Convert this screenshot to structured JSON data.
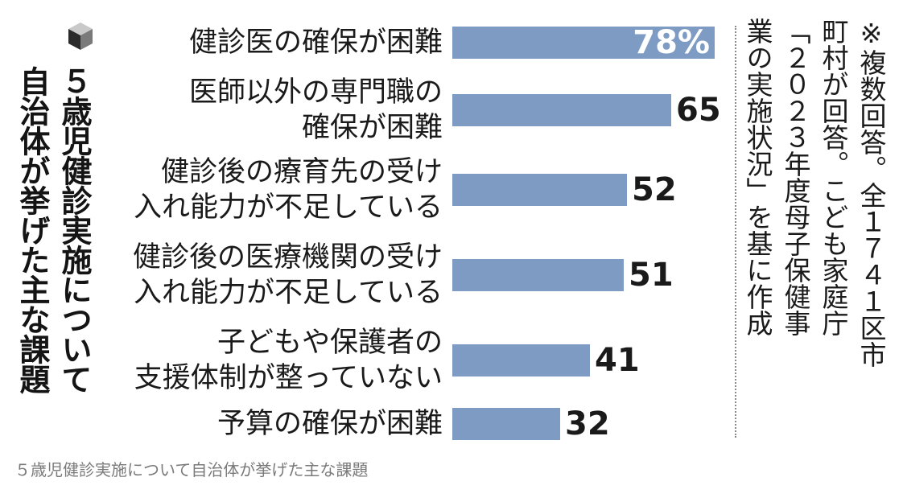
{
  "title_lines": [
    "５歳児健診実施について",
    "自治体が挙げた主な課題"
  ],
  "note_lines": [
    "※複数回答。全１７４１区市",
    "町村が回答。こども家庭庁",
    "「２０２３年度母子保健事",
    "業の実施状況」を基に作成"
  ],
  "caption": "５歳児健診実施について自治体が挙げた主な課題",
  "chart_data": {
    "type": "bar",
    "orientation": "horizontal",
    "categories": [
      [
        "健診医の確保が困難"
      ],
      [
        "医師以外の専門職の",
        "確保が困難"
      ],
      [
        "健診後の療育先の受け",
        "入れ能力が不足している"
      ],
      [
        "健診後の医療機関の受け",
        "入れ能力が不足している"
      ],
      [
        "子どもや保護者の",
        "支援体制が整っていない"
      ],
      [
        "予算の確保が困難"
      ]
    ],
    "values": [
      78,
      65,
      52,
      51,
      41,
      32
    ],
    "value_labels": [
      "78%",
      "65",
      "52",
      "51",
      "41",
      "32"
    ],
    "unit": "%",
    "xlim": [
      0,
      78
    ],
    "bar_color": "#7d9bc3",
    "grid": false,
    "legend": false
  }
}
